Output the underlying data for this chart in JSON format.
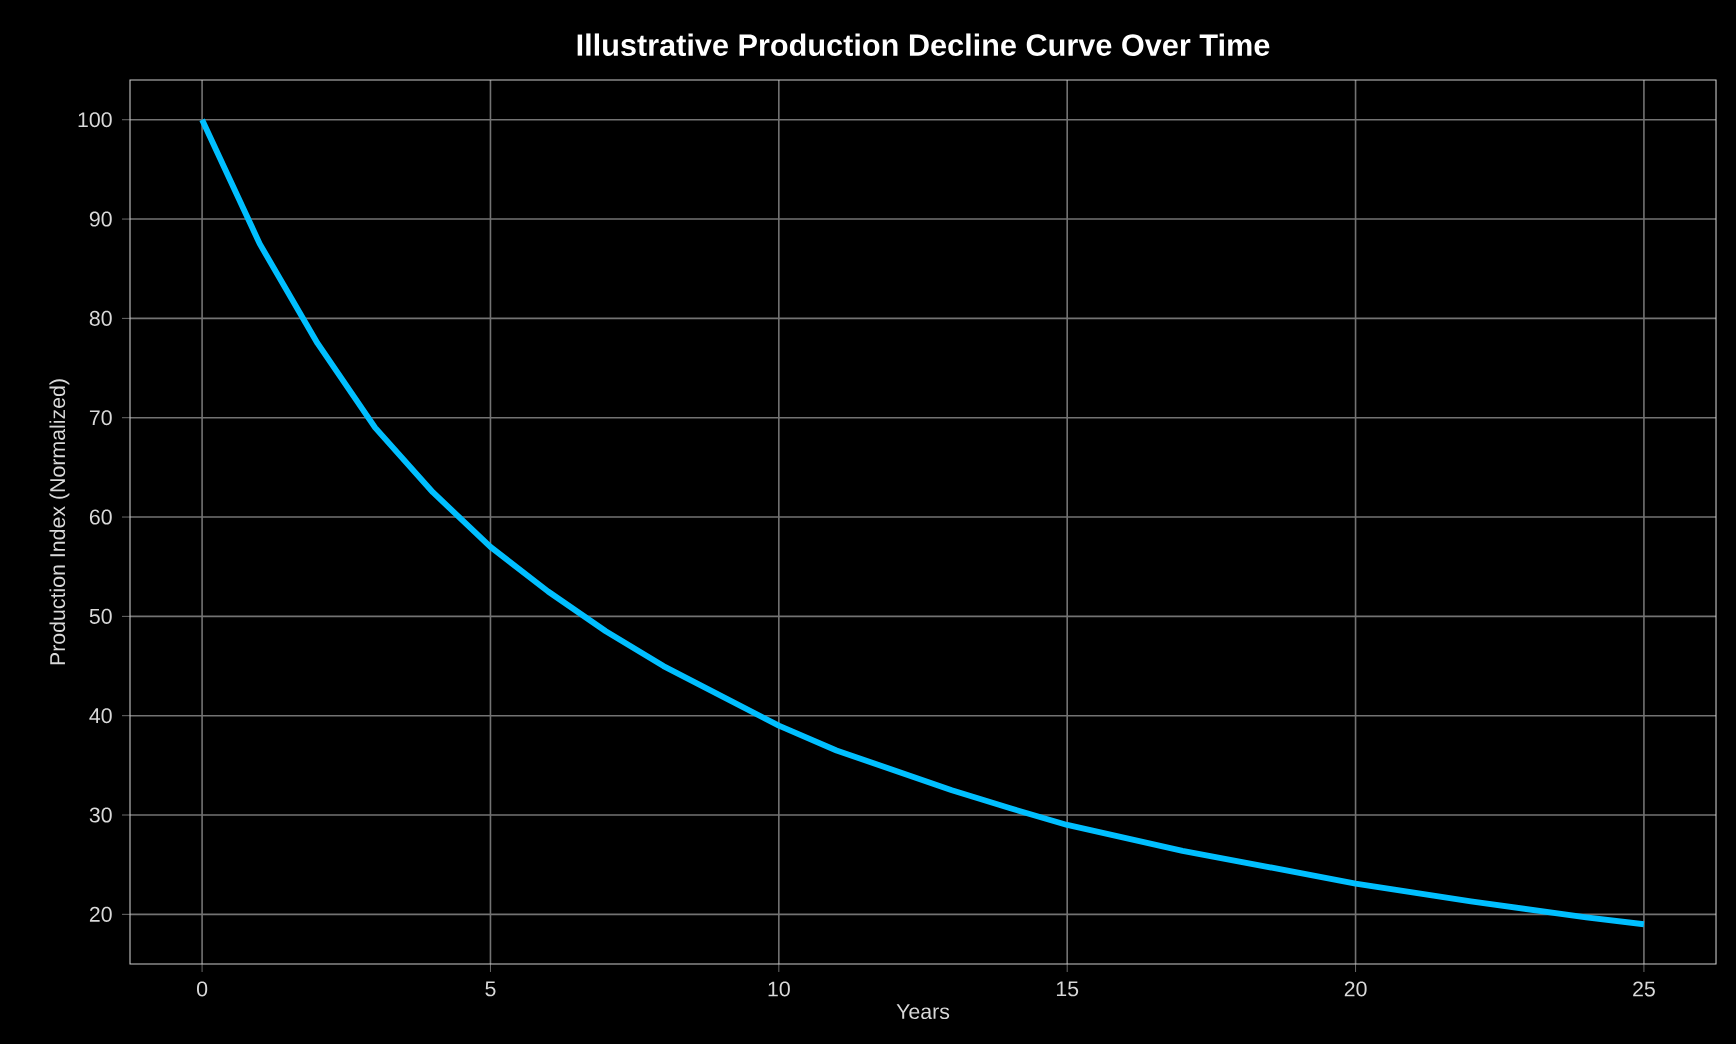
{
  "chart_data": {
    "type": "line",
    "title": "Illustrative Production Decline Curve Over Time",
    "xlabel": "Years",
    "ylabel": "Production Index (Normalized)",
    "x": [
      0,
      1,
      2,
      3,
      4,
      5,
      6,
      7,
      8,
      9,
      10,
      11,
      12,
      13,
      14,
      15,
      16,
      17,
      18,
      19,
      20,
      21,
      22,
      23,
      24,
      25
    ],
    "series": [
      {
        "color": "#00bfff",
        "values": [
          100,
          87.5,
          77.5,
          69,
          62.5,
          57,
          52.5,
          48.5,
          45,
          42,
          39,
          36.5,
          34.5,
          32.5,
          30.7,
          29,
          27.7,
          26.4,
          25.3,
          24.2,
          23.1,
          22.2,
          21.3,
          20.5,
          19.7,
          19
        ]
      }
    ],
    "xlim": [
      -1.25,
      26.25
    ],
    "ylim": [
      15,
      104
    ],
    "xticks": [
      0,
      5,
      10,
      15,
      20,
      25
    ],
    "yticks": [
      20,
      30,
      40,
      50,
      60,
      70,
      80,
      90,
      100
    ],
    "grid": true
  }
}
